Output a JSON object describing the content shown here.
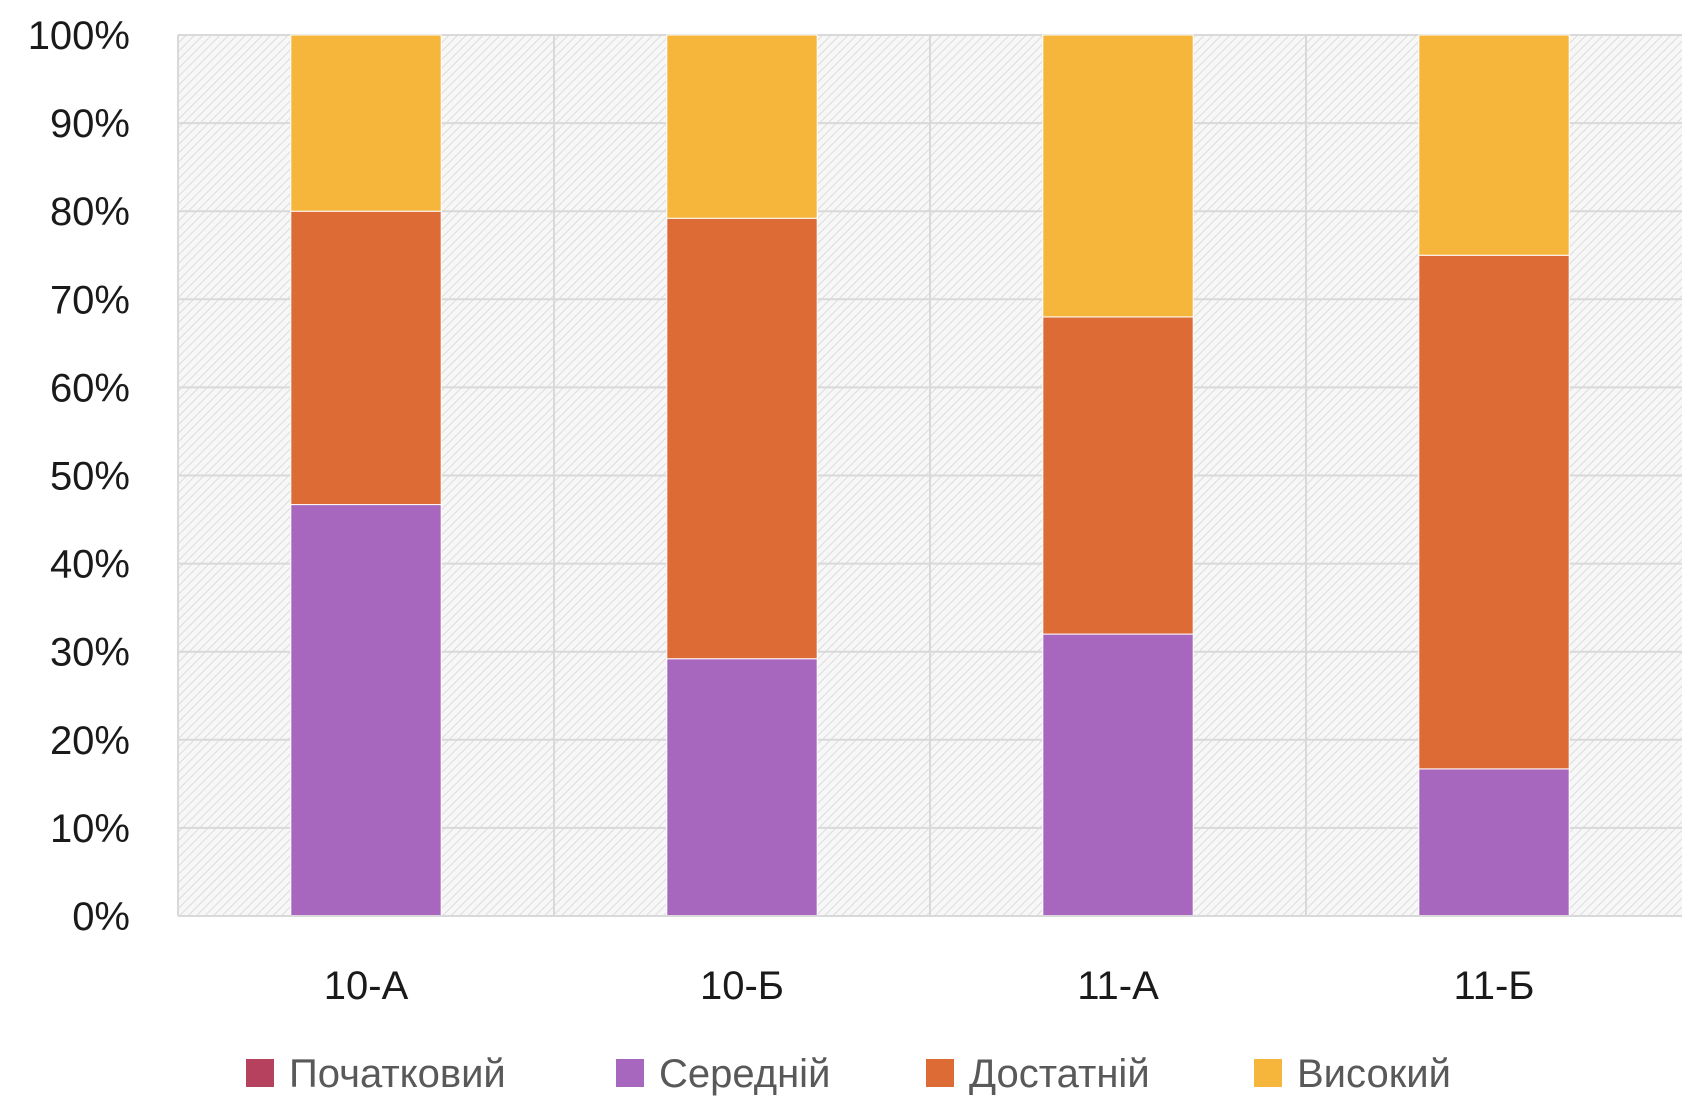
{
  "chart_data": {
    "type": "bar",
    "stacked": true,
    "percent": true,
    "title": "",
    "xlabel": "",
    "ylabel": "",
    "ylim": [
      0,
      100
    ],
    "yticks": [
      "0%",
      "10%",
      "20%",
      "30%",
      "40%",
      "50%",
      "60%",
      "70%",
      "80%",
      "90%",
      "100%"
    ],
    "categories": [
      "10-А",
      "10-Б",
      "11-А",
      "11-Б"
    ],
    "series": [
      {
        "name": "Початковий",
        "color": "#b5415e",
        "values": [
          0,
          0,
          0,
          0
        ]
      },
      {
        "name": "Середній",
        "color": "#a867be",
        "values": [
          46.7,
          29.2,
          32.0,
          16.7
        ]
      },
      {
        "name": "Достатній",
        "color": "#dd6b36",
        "values": [
          33.3,
          50.0,
          36.0,
          58.3
        ]
      },
      {
        "name": "Високий",
        "color": "#f6b63c",
        "values": [
          20.0,
          20.8,
          32.0,
          25.0
        ]
      }
    ],
    "grid": true,
    "legend_position": "bottom"
  }
}
